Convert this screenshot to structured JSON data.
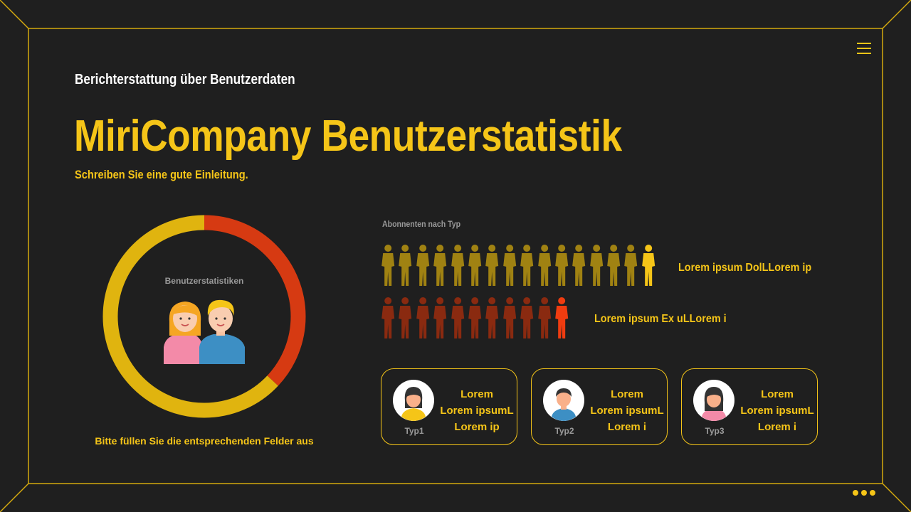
{
  "header": {
    "kicker": "Berichterstattung über Benutzerdaten",
    "title": "MiriCompany Benutzerstatistik",
    "subtitle": "Schreiben Sie eine gute Einleitung."
  },
  "donut": {
    "label": "Benutzerstatistiken",
    "caption": "Bitte füllen Sie die entsprechenden Felder aus",
    "segments": [
      {
        "value": 0.37,
        "color": "#d63a12"
      },
      {
        "value": 0.63,
        "color": "#e0b40f"
      }
    ],
    "icon": "users-icon"
  },
  "subscribers": {
    "label": "Abonnenten nach Typ",
    "rows": [
      {
        "count": 16,
        "highlight_color": "#f5c518",
        "muted_color": "#a08212",
        "label": "Lorem ipsum DolLLorem ip"
      },
      {
        "count": 11,
        "highlight_color": "#f03c10",
        "muted_color": "#8a2a10",
        "label": "Lorem ipsum Ex uLLorem i"
      }
    ]
  },
  "cards": [
    {
      "type": "Typ1",
      "line1": "Lorem",
      "line2": "Lorem ipsumL",
      "line3": "Lorem ip",
      "avatar": "woman-avatar-icon",
      "shirt": "#f5c518",
      "hair": "#333333"
    },
    {
      "type": "Typ2",
      "line1": "Lorem",
      "line2": "Lorem ipsumL",
      "line3": "Lorem i",
      "avatar": "man-avatar-icon",
      "shirt": "#3d8fc4",
      "hair": "#333333"
    },
    {
      "type": "Typ3",
      "line1": "Lorem",
      "line2": "Lorem ipsumL",
      "line3": "Lorem i",
      "avatar": "woman-avatar-icon",
      "shirt": "#f38aa8",
      "hair": "#333333"
    }
  ],
  "colors": {
    "accent": "#f5c518",
    "background": "#1f1f1f"
  }
}
